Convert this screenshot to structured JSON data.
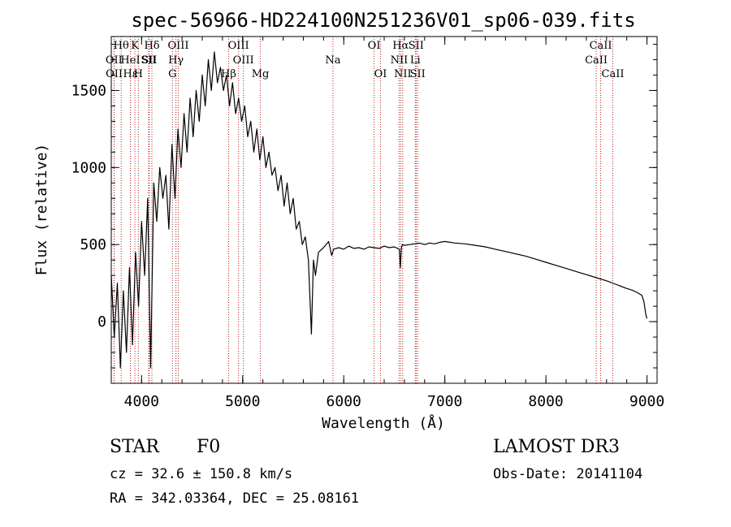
{
  "chart_data": {
    "type": "line",
    "title": "spec-56966-HD224100N251236V01_sp06-039.fits",
    "xlabel": "Wavelength (Å)",
    "ylabel": "Flux (relative)",
    "xlim": [
      3700,
      9100
    ],
    "ylim": [
      -400,
      1850
    ],
    "xticks": [
      4000,
      5000,
      6000,
      7000,
      8000,
      9000
    ],
    "yticks": [
      0,
      500,
      1000,
      1500
    ],
    "series": [
      {
        "name": "flux",
        "x": [
          3700,
          3730,
          3760,
          3790,
          3820,
          3850,
          3880,
          3910,
          3940,
          3970,
          4000,
          4030,
          4060,
          4090,
          4120,
          4150,
          4180,
          4210,
          4240,
          4270,
          4300,
          4330,
          4360,
          4390,
          4420,
          4450,
          4480,
          4510,
          4540,
          4570,
          4600,
          4630,
          4660,
          4690,
          4720,
          4750,
          4780,
          4810,
          4840,
          4870,
          4900,
          4930,
          4960,
          4990,
          5020,
          5050,
          5080,
          5110,
          5140,
          5170,
          5200,
          5230,
          5260,
          5290,
          5320,
          5350,
          5380,
          5410,
          5440,
          5470,
          5500,
          5530,
          5560,
          5590,
          5620,
          5650,
          5680,
          5700,
          5720,
          5750,
          5800,
          5850,
          5880,
          5900,
          5950,
          6000,
          6050,
          6100,
          6150,
          6200,
          6250,
          6300,
          6350,
          6400,
          6450,
          6500,
          6550,
          6560,
          6570,
          6580,
          6600,
          6650,
          6700,
          6750,
          6800,
          6850,
          6900,
          6950,
          7000,
          7100,
          7200,
          7300,
          7400,
          7500,
          7600,
          7700,
          7800,
          7900,
          8000,
          8100,
          8200,
          8300,
          8400,
          8500,
          8600,
          8700,
          8800,
          8850,
          8900,
          8950,
          8970,
          8990,
          9000
        ],
        "y": [
          300,
          -100,
          250,
          -300,
          200,
          -200,
          350,
          -150,
          450,
          100,
          650,
          300,
          800,
          -300,
          900,
          650,
          1000,
          800,
          950,
          600,
          1150,
          800,
          1250,
          1000,
          1350,
          1100,
          1450,
          1200,
          1500,
          1300,
          1600,
          1400,
          1700,
          1500,
          1750,
          1550,
          1650,
          1500,
          1600,
          1400,
          1550,
          1350,
          1450,
          1300,
          1400,
          1200,
          1300,
          1100,
          1250,
          1050,
          1200,
          1000,
          1100,
          950,
          1000,
          850,
          950,
          750,
          900,
          700,
          800,
          600,
          650,
          500,
          550,
          400,
          -80,
          400,
          300,
          450,
          480,
          520,
          430,
          470,
          480,
          470,
          490,
          475,
          480,
          470,
          485,
          480,
          475,
          490,
          480,
          485,
          470,
          350,
          480,
          500,
          495,
          500,
          505,
          510,
          500,
          510,
          505,
          515,
          520,
          510,
          505,
          495,
          485,
          470,
          455,
          440,
          425,
          405,
          385,
          365,
          345,
          325,
          305,
          285,
          265,
          240,
          215,
          205,
          190,
          170,
          130,
          40,
          20
        ]
      }
    ],
    "lines": [
      {
        "name": "Hθ",
        "wl": 3798,
        "row": 1
      },
      {
        "name": "OII",
        "wl": 3727,
        "row": 2
      },
      {
        "name": "OII",
        "wl": 3729,
        "row": 3
      },
      {
        "name": "Hε",
        "wl": 3889,
        "row": 3
      },
      {
        "name": "K",
        "wl": 3934,
        "row": 1
      },
      {
        "name": "HeI",
        "wl": 3889,
        "row": 2
      },
      {
        "name": "SII",
        "wl": 4069,
        "row": 2
      },
      {
        "name": "H",
        "wl": 3968,
        "row": 3
      },
      {
        "name": "Hδ",
        "wl": 4102,
        "row": 1
      },
      {
        "name": "SII",
        "wl": 4076,
        "row": 2
      },
      {
        "name": "OIII",
        "wl": 4363,
        "row": 1
      },
      {
        "name": "Hγ",
        "wl": 4340,
        "row": 2
      },
      {
        "name": "G",
        "wl": 4305,
        "row": 3
      },
      {
        "name": "OIII",
        "wl": 4959,
        "row": 1
      },
      {
        "name": "OIII",
        "wl": 5007,
        "row": 2
      },
      {
        "name": "Hβ",
        "wl": 4861,
        "row": 3
      },
      {
        "name": "Mg",
        "wl": 5175,
        "row": 3
      },
      {
        "name": "Na",
        "wl": 5893,
        "row": 2
      },
      {
        "name": "OI",
        "wl": 6300,
        "row": 1
      },
      {
        "name": "OI",
        "wl": 6364,
        "row": 3
      },
      {
        "name": "Hα",
        "wl": 6563,
        "row": 1
      },
      {
        "name": "SII",
        "wl": 6716,
        "row": 1
      },
      {
        "name": "NII",
        "wl": 6548,
        "row": 2
      },
      {
        "name": "Li",
        "wl": 6708,
        "row": 2
      },
      {
        "name": "NII",
        "wl": 6583,
        "row": 3
      },
      {
        "name": "SII",
        "wl": 6731,
        "row": 3
      },
      {
        "name": "CaII",
        "wl": 8542,
        "row": 1
      },
      {
        "name": "CaII",
        "wl": 8498,
        "row": 2
      },
      {
        "name": "CaII",
        "wl": 8662,
        "row": 3
      }
    ],
    "line_color": "#b22222"
  },
  "info": {
    "object_type": "STAR",
    "subclass": "F0",
    "survey": "LAMOST DR3",
    "redshift": "cz = 32.6 ± 150.8 km/s",
    "obs_date": "Obs-Date: 20141104",
    "coords": "RA = 342.03364, DEC =  25.08161"
  }
}
